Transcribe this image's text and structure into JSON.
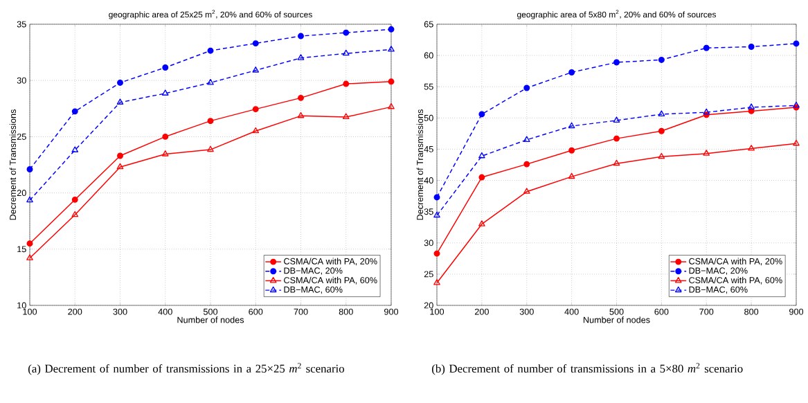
{
  "chart_data": [
    {
      "type": "line",
      "title": "geographic area of 25x25 m$^{2}$, 20% and 60% of sources",
      "xlabel": "Number of nodes",
      "ylabel": "Decrement of Transmissions",
      "x": [
        100,
        200,
        300,
        400,
        500,
        600,
        700,
        800,
        900
      ],
      "xlim": [
        100,
        900
      ],
      "xticks": [
        100,
        200,
        300,
        400,
        500,
        600,
        700,
        800,
        900
      ],
      "ylim": [
        10,
        35
      ],
      "yticks": [
        10,
        15,
        20,
        25,
        30,
        35
      ],
      "grid": true,
      "legend": "bottom right",
      "series": [
        {
          "name": "CSMA/CA with PA, 20%",
          "color": "#ff0000",
          "marker": "circle",
          "line_style": "solid",
          "values": [
            15.5,
            19.4,
            23.3,
            25.0,
            26.4,
            27.45,
            28.45,
            29.7,
            29.9
          ]
        },
        {
          "name": "DB−MAC, 20%",
          "color": "#0000ff",
          "marker": "circle",
          "line_style": "dashed",
          "values": [
            22.1,
            27.25,
            29.8,
            31.15,
            32.65,
            33.3,
            33.95,
            34.25,
            34.55
          ]
        },
        {
          "name": "CSMA/CA with PA, 60%",
          "color": "#ff0000",
          "marker": "triangle",
          "line_style": "solid",
          "values": [
            14.2,
            18.05,
            22.3,
            23.45,
            23.85,
            25.5,
            26.85,
            26.75,
            27.65
          ]
        },
        {
          "name": "DB−MAC, 60%",
          "color": "#0000ff",
          "marker": "triangle",
          "line_style": "dashed",
          "values": [
            19.35,
            23.8,
            28.05,
            28.85,
            29.8,
            30.9,
            32.0,
            32.4,
            32.75
          ]
        }
      ],
      "annotations": [
        "(a) Decrement of number of transmissions in a 25×25 *m*$^{2}$ scenario"
      ]
    },
    {
      "type": "line",
      "title": "geographic area of 5x80 m$^{2}$, 20% and 60% of sources",
      "xlabel": "Number of nodes",
      "ylabel": "Decrement of Transmissions",
      "x": [
        100,
        200,
        300,
        400,
        500,
        600,
        700,
        800,
        900
      ],
      "xlim": [
        100,
        900
      ],
      "xticks": [
        100,
        200,
        300,
        400,
        500,
        600,
        700,
        800,
        900
      ],
      "ylim": [
        20,
        65
      ],
      "yticks": [
        20,
        25,
        30,
        35,
        40,
        45,
        50,
        55,
        60,
        65
      ],
      "grid": true,
      "legend": "bottom right",
      "series": [
        {
          "name": "CSMA/CA with PA, 20%",
          "color": "#ff0000",
          "marker": "circle",
          "line_style": "solid",
          "values": [
            28.3,
            40.5,
            42.6,
            44.8,
            46.7,
            47.9,
            50.5,
            51.1,
            51.7
          ]
        },
        {
          "name": "DB−MAC, 20%",
          "color": "#0000ff",
          "marker": "circle",
          "line_style": "dashed",
          "values": [
            37.3,
            50.6,
            54.8,
            57.3,
            58.9,
            59.3,
            61.2,
            61.4,
            61.9
          ]
        },
        {
          "name": "CSMA/CA with PA, 60%",
          "color": "#ff0000",
          "marker": "triangle",
          "line_style": "solid",
          "values": [
            23.6,
            33.0,
            38.2,
            40.6,
            42.7,
            43.8,
            44.3,
            45.1,
            45.9
          ]
        },
        {
          "name": "DB−MAC, 60%",
          "color": "#0000ff",
          "marker": "triangle",
          "line_style": "dashed",
          "values": [
            34.4,
            43.9,
            46.5,
            48.7,
            49.6,
            50.6,
            50.9,
            51.7,
            52.0
          ]
        }
      ],
      "annotations": [
        "(b) Decrement of number of transmissions in a 5×80 *m*$^{2}$ scenario"
      ]
    }
  ]
}
